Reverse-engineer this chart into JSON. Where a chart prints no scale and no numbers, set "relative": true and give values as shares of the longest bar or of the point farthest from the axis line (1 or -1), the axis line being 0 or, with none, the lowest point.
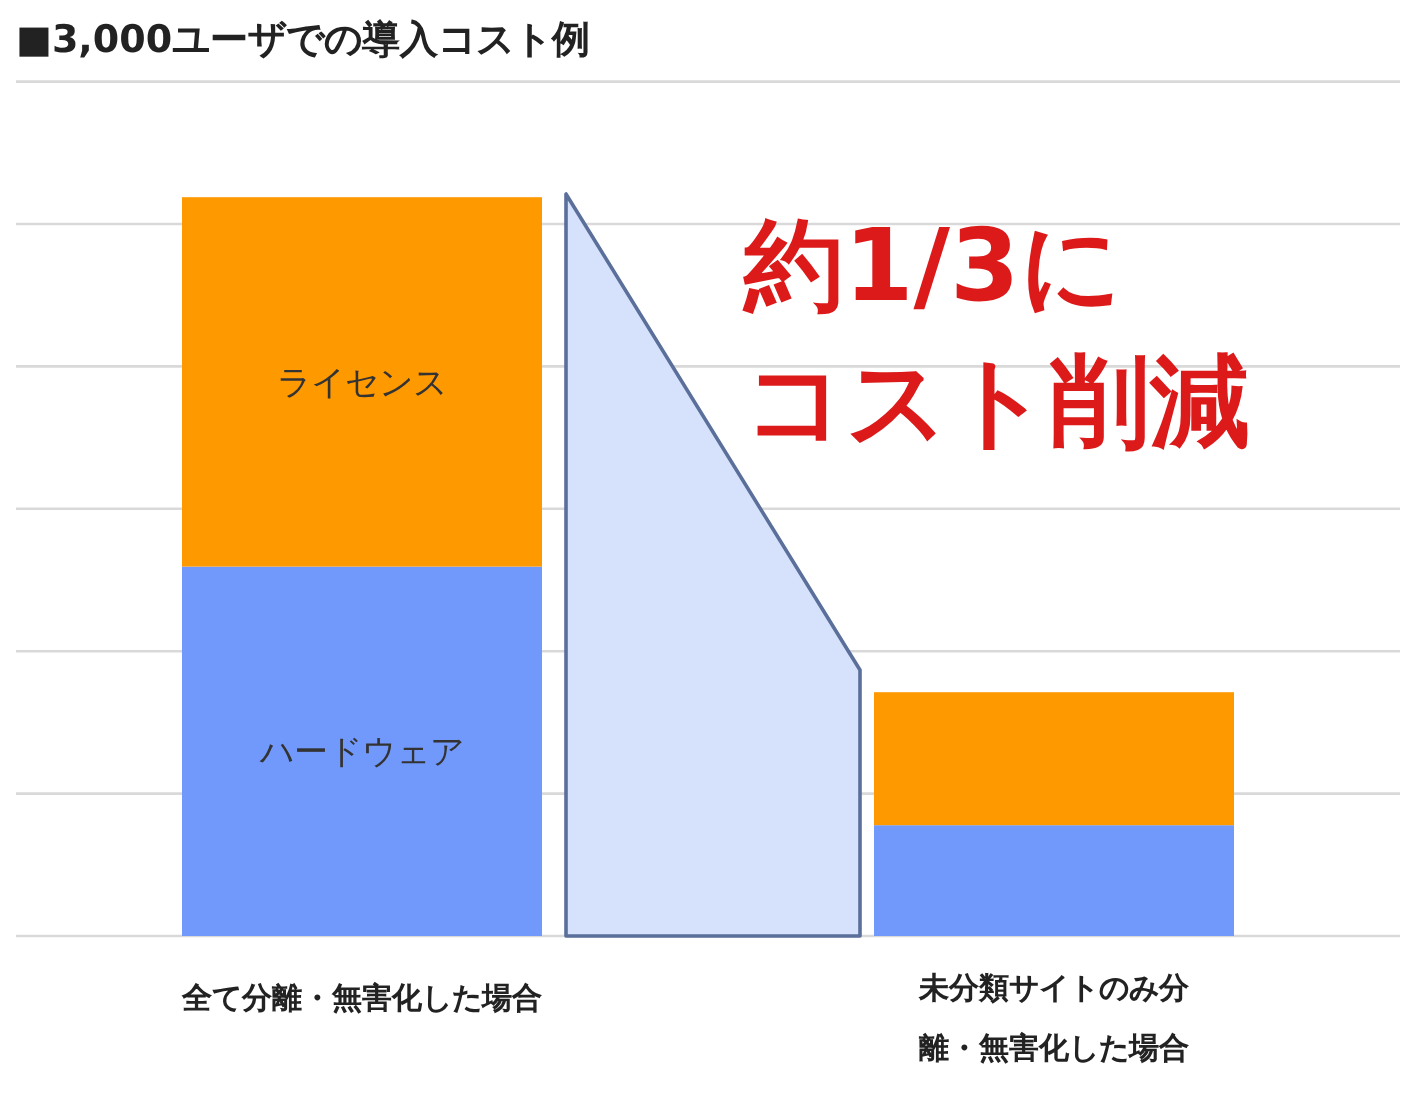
{
  "chart_data": {
    "type": "bar",
    "title": "■3,000ユーザでの導入コスト例",
    "stacked": true,
    "relative": true,
    "grid": "y",
    "legend": false,
    "categories": [
      "全て分離・無害化した場合",
      "未分類サイトのみ分離・無害化した場合"
    ],
    "series": [
      {
        "name": "ハードウェア",
        "color": "#7199fb",
        "values": [
          0.5,
          0.15
        ]
      },
      {
        "name": "ライセンス",
        "color": "#ff9900",
        "values": [
          0.5,
          0.18
        ]
      }
    ],
    "annotations": [
      "約1/3に",
      "コスト削減"
    ]
  }
}
